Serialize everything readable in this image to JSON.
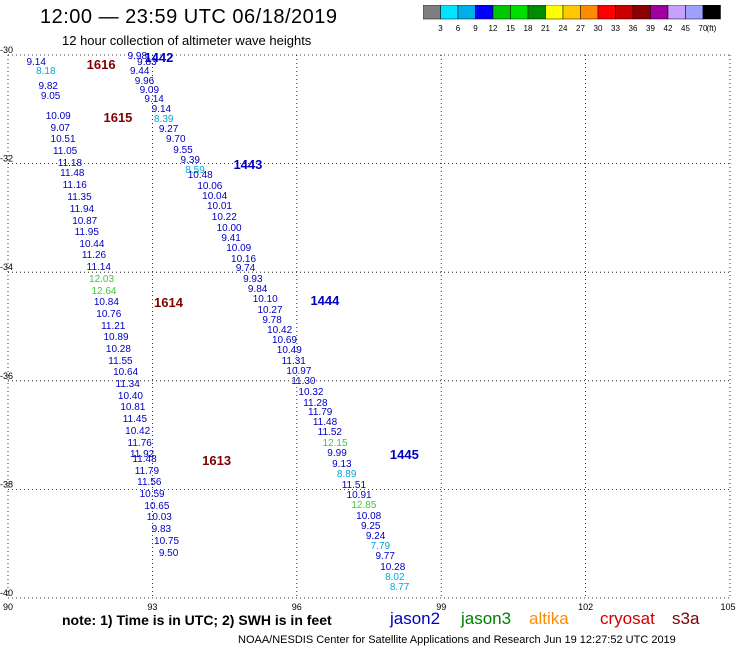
{
  "title": "12:00 — 23:59 UTC 06/18/2019",
  "subtitle": "12 hour collection of altimeter wave heights",
  "units_label": "(ft)",
  "colorbar": {
    "labels": [
      "3",
      "6",
      "9",
      "12",
      "15",
      "18",
      "21",
      "24",
      "27",
      "30",
      "33",
      "36",
      "39",
      "42",
      "45",
      "70"
    ],
    "colors": [
      "#7f7f7f",
      "#00e5ff",
      "#00aee8",
      "#0000ff",
      "#00c800",
      "#00e000",
      "#008c00",
      "#ffff00",
      "#ffc800",
      "#ff8c00",
      "#ff0000",
      "#c80000",
      "#8c0000",
      "#a000a0",
      "#c8a0ff",
      "#a0a0ff",
      "#000000"
    ]
  },
  "map": {
    "lat_labels": [
      "-30",
      "-32",
      "-34",
      "-36",
      "-38",
      "-40"
    ],
    "lon_labels": [
      "90",
      "93",
      "96",
      "99",
      "102",
      "105"
    ],
    "lat_values": [
      -30,
      -32,
      -34,
      -36,
      -38,
      -40
    ],
    "lon_values": [
      90,
      93,
      96,
      99,
      102,
      105
    ]
  },
  "observations": [
    {
      "v": "9.98",
      "c": "#0000c0",
      "lon": 92.65,
      "lat": -30.04
    },
    {
      "v": "9.14",
      "c": "#0000c0",
      "lon": 90.55,
      "lat": -30.15
    },
    {
      "v": "9.83",
      "c": "#0000c0",
      "lon": 92.85,
      "lat": -30.15
    },
    {
      "v": "9.44",
      "c": "#0000c0",
      "lon": 92.7,
      "lat": -30.31
    },
    {
      "v": "8.18",
      "c": "#00a8d8",
      "lon": 90.75,
      "lat": -30.31
    },
    {
      "v": "9.96",
      "c": "#0000c0",
      "lon": 92.8,
      "lat": -30.49
    },
    {
      "v": "9.82",
      "c": "#0000c0",
      "lon": 90.8,
      "lat": -30.59
    },
    {
      "v": "9.09",
      "c": "#0000c0",
      "lon": 92.9,
      "lat": -30.66
    },
    {
      "v": "9.05",
      "c": "#0000c0",
      "lon": 90.85,
      "lat": -30.78
    },
    {
      "v": "9.14",
      "c": "#0000c0",
      "lon": 93.0,
      "lat": -30.83
    },
    {
      "v": "9.14",
      "c": "#0000c0",
      "lon": 93.15,
      "lat": -31.01
    },
    {
      "v": "10.09",
      "c": "#0000c0",
      "lon": 90.95,
      "lat": -31.15
    },
    {
      "v": "8.39",
      "c": "#00a8d8",
      "lon": 93.2,
      "lat": -31.19
    },
    {
      "v": "9.07",
      "c": "#0000c0",
      "lon": 91.05,
      "lat": -31.36
    },
    {
      "v": "9.27",
      "c": "#0000c0",
      "lon": 93.3,
      "lat": -31.38
    },
    {
      "v": "9.70",
      "c": "#0000c0",
      "lon": 93.45,
      "lat": -31.57
    },
    {
      "v": "10.51",
      "c": "#0000c0",
      "lon": 91.05,
      "lat": -31.57
    },
    {
      "v": "9.55",
      "c": "#0000c0",
      "lon": 93.6,
      "lat": -31.77
    },
    {
      "v": "11.05",
      "c": "#0000c0",
      "lon": 91.1,
      "lat": -31.78
    },
    {
      "v": "9.39",
      "c": "#0000c0",
      "lon": 93.75,
      "lat": -31.96
    },
    {
      "v": "11.18",
      "c": "#0000c0",
      "lon": 91.2,
      "lat": -32.0
    },
    {
      "v": "8.59",
      "c": "#00a8d8",
      "lon": 93.85,
      "lat": -32.13
    },
    {
      "v": "11.48",
      "c": "#0000c0",
      "lon": 91.25,
      "lat": -32.2
    },
    {
      "v": "10.48",
      "c": "#0000c0",
      "lon": 93.9,
      "lat": -32.22
    },
    {
      "v": "11.16",
      "c": "#0000c0",
      "lon": 91.3,
      "lat": -32.42
    },
    {
      "v": "10.06",
      "c": "#0000c0",
      "lon": 94.1,
      "lat": -32.43
    },
    {
      "v": "10.04",
      "c": "#0000c0",
      "lon": 94.2,
      "lat": -32.62
    },
    {
      "v": "11.35",
      "c": "#0000c0",
      "lon": 91.4,
      "lat": -32.63
    },
    {
      "v": "10.01",
      "c": "#0000c0",
      "lon": 94.3,
      "lat": -32.8
    },
    {
      "v": "11.94",
      "c": "#0000c0",
      "lon": 91.45,
      "lat": -32.85
    },
    {
      "v": "10.22",
      "c": "#0000c0",
      "lon": 94.4,
      "lat": -33.0
    },
    {
      "v": "10.87",
      "c": "#0000c0",
      "lon": 91.5,
      "lat": -33.07
    },
    {
      "v": "10.00",
      "c": "#0000c0",
      "lon": 94.5,
      "lat": -33.2
    },
    {
      "v": "11.95",
      "c": "#0000c0",
      "lon": 91.55,
      "lat": -33.28
    },
    {
      "v": "9.41",
      "c": "#0000c0",
      "lon": 94.6,
      "lat": -33.38
    },
    {
      "v": "10.44",
      "c": "#0000c0",
      "lon": 91.65,
      "lat": -33.49
    },
    {
      "v": "10.09",
      "c": "#0000c0",
      "lon": 94.7,
      "lat": -33.57
    },
    {
      "v": "10.16",
      "c": "#0000c0",
      "lon": 94.8,
      "lat": -33.77
    },
    {
      "v": "11.26",
      "c": "#0000c0",
      "lon": 91.7,
      "lat": -33.71
    },
    {
      "v": "9.74",
      "c": "#0000c0",
      "lon": 94.9,
      "lat": -33.95
    },
    {
      "v": "11.14",
      "c": "#0000c0",
      "lon": 91.8,
      "lat": -33.93
    },
    {
      "v": "9.93",
      "c": "#0000c0",
      "lon": 95.05,
      "lat": -34.15
    },
    {
      "v": "12.03",
      "c": "#40c840",
      "lon": 91.85,
      "lat": -34.14
    },
    {
      "v": "9.84",
      "c": "#0000c0",
      "lon": 95.15,
      "lat": -34.33
    },
    {
      "v": "12.64",
      "c": "#40c840",
      "lon": 91.9,
      "lat": -34.36
    },
    {
      "v": "10.10",
      "c": "#0000c0",
      "lon": 95.25,
      "lat": -34.52
    },
    {
      "v": "10.27",
      "c": "#0000c0",
      "lon": 95.35,
      "lat": -34.71
    },
    {
      "v": "10.84",
      "c": "#0000c0",
      "lon": 91.95,
      "lat": -34.57
    },
    {
      "v": "9.78",
      "c": "#0000c0",
      "lon": 95.45,
      "lat": -34.9
    },
    {
      "v": "10.76",
      "c": "#0000c0",
      "lon": 92.0,
      "lat": -34.79
    },
    {
      "v": "10.42",
      "c": "#0000c0",
      "lon": 95.55,
      "lat": -35.08
    },
    {
      "v": "11.21",
      "c": "#0000c0",
      "lon": 92.1,
      "lat": -35.01
    },
    {
      "v": "10.69",
      "c": "#0000c0",
      "lon": 95.65,
      "lat": -35.27
    },
    {
      "v": "10.89",
      "c": "#0000c0",
      "lon": 92.15,
      "lat": -35.22
    },
    {
      "v": "10.49",
      "c": "#0000c0",
      "lon": 95.75,
      "lat": -35.45
    },
    {
      "v": "11.31",
      "c": "#0000c0",
      "lon": 95.85,
      "lat": -35.65
    },
    {
      "v": "10.28",
      "c": "#0000c0",
      "lon": 92.2,
      "lat": -35.43
    },
    {
      "v": "10.97",
      "c": "#0000c0",
      "lon": 95.95,
      "lat": -35.83
    },
    {
      "v": "11.55",
      "c": "#0000c0",
      "lon": 92.25,
      "lat": -35.65
    },
    {
      "v": "11.30",
      "c": "#0000c0",
      "lon": 96.05,
      "lat": -36.02
    },
    {
      "v": "10.64",
      "c": "#0000c0",
      "lon": 92.35,
      "lat": -35.86
    },
    {
      "v": "10.32",
      "c": "#0000c0",
      "lon": 96.2,
      "lat": -36.22
    },
    {
      "v": "11.34",
      "c": "#0000c0",
      "lon": 92.4,
      "lat": -36.08
    },
    {
      "v": "11.28",
      "c": "#0000c0",
      "lon": 96.3,
      "lat": -36.42
    },
    {
      "v": "10.40",
      "c": "#0000c0",
      "lon": 92.45,
      "lat": -36.29
    },
    {
      "v": "11.79",
      "c": "#0000c0",
      "lon": 96.4,
      "lat": -36.6
    },
    {
      "v": "10.81",
      "c": "#0000c0",
      "lon": 92.5,
      "lat": -36.51
    },
    {
      "v": "11.48",
      "c": "#0000c0",
      "lon": 96.5,
      "lat": -36.78
    },
    {
      "v": "11.52",
      "c": "#0000c0",
      "lon": 96.6,
      "lat": -36.97
    },
    {
      "v": "11.45",
      "c": "#0000c0",
      "lon": 92.55,
      "lat": -36.72
    },
    {
      "v": "12.15",
      "c": "#40c840",
      "lon": 96.7,
      "lat": -37.17
    },
    {
      "v": "10.42",
      "c": "#0000c0",
      "lon": 92.6,
      "lat": -36.94
    },
    {
      "v": "9.99",
      "c": "#0000c0",
      "lon": 96.8,
      "lat": -37.35
    },
    {
      "v": "11.76",
      "c": "#0000c0",
      "lon": 92.65,
      "lat": -37.16
    },
    {
      "v": "9.13",
      "c": "#0000c0",
      "lon": 96.9,
      "lat": -37.55
    },
    {
      "v": "8.89",
      "c": "#00a8d8",
      "lon": 97.0,
      "lat": -37.73
    },
    {
      "v": "11.92",
      "c": "#0000c0",
      "lon": 92.7,
      "lat": -37.37
    },
    {
      "v": "11.48",
      "c": "#0000c0",
      "lon": 92.75,
      "lat": -37.46
    },
    {
      "v": "11.51",
      "c": "#0000c0",
      "lon": 97.1,
      "lat": -37.93
    },
    {
      "v": "11.79",
      "c": "#0000c0",
      "lon": 92.8,
      "lat": -37.68
    },
    {
      "v": "10.91",
      "c": "#0000c0",
      "lon": 97.2,
      "lat": -38.12
    },
    {
      "v": "12.85",
      "c": "#40c840",
      "lon": 97.3,
      "lat": -38.31
    },
    {
      "v": "11.56",
      "c": "#0000c0",
      "lon": 92.85,
      "lat": -37.89
    },
    {
      "v": "10.08",
      "c": "#0000c0",
      "lon": 97.4,
      "lat": -38.5
    },
    {
      "v": "10.59",
      "c": "#0000c0",
      "lon": 92.9,
      "lat": -38.11
    },
    {
      "v": "9.25",
      "c": "#0000c0",
      "lon": 97.5,
      "lat": -38.69
    },
    {
      "v": "10.65",
      "c": "#0000c0",
      "lon": 93.0,
      "lat": -38.32
    },
    {
      "v": "9.24",
      "c": "#0000c0",
      "lon": 97.6,
      "lat": -38.88
    },
    {
      "v": "10.03",
      "c": "#0000c0",
      "lon": 93.05,
      "lat": -38.53
    },
    {
      "v": "7.79",
      "c": "#00a8d8",
      "lon": 97.7,
      "lat": -39.06
    },
    {
      "v": "9.83",
      "c": "#0000c0",
      "lon": 93.15,
      "lat": -38.75
    },
    {
      "v": "9.77",
      "c": "#0000c0",
      "lon": 97.8,
      "lat": -39.25
    },
    {
      "v": "10.75",
      "c": "#0000c0",
      "lon": 93.2,
      "lat": -38.97
    },
    {
      "v": "10.28",
      "c": "#0000c0",
      "lon": 97.9,
      "lat": -39.44
    },
    {
      "v": "9.50",
      "c": "#0000c0",
      "lon": 93.3,
      "lat": -39.19
    },
    {
      "v": "8.02",
      "c": "#00a8d8",
      "lon": 98.0,
      "lat": -39.63
    },
    {
      "v": "8.77",
      "c": "#00a8d8",
      "lon": 98.1,
      "lat": -39.82
    }
  ],
  "passes": [
    {
      "id": "1442",
      "c": "#0000c0",
      "lon": 93.0,
      "lat": -30.04
    },
    {
      "id": "1616",
      "c": "#800000",
      "lon": 91.8,
      "lat": -30.16
    },
    {
      "id": "1615",
      "c": "#800000",
      "lon": 92.15,
      "lat": -31.15
    },
    {
      "id": "1443",
      "c": "#0000c0",
      "lon": 94.85,
      "lat": -32.0
    },
    {
      "id": "1614",
      "c": "#800000",
      "lon": 93.2,
      "lat": -34.55
    },
    {
      "id": "1444",
      "c": "#0000c0",
      "lon": 96.45,
      "lat": -34.52
    },
    {
      "id": "1445",
      "c": "#0000c0",
      "lon": 98.1,
      "lat": -37.35
    },
    {
      "id": "1613",
      "c": "#800000",
      "lon": 94.2,
      "lat": -37.45
    }
  ],
  "note": "note:  1) Time is in UTC; 2) SWH is in feet",
  "satellites": [
    {
      "name": "jason2",
      "c": "#0000c0"
    },
    {
      "name": "jason3",
      "c": "#008000"
    },
    {
      "name": "altika",
      "c": "#ff8c00"
    },
    {
      "name": "cryosat",
      "c": "#d00000"
    },
    {
      "name": "s3a",
      "c": "#800000"
    }
  ],
  "credit": "NOAA/NESDIS Center for Satellite Applications and Research    Jun 19 12:27:52 UTC 2019"
}
